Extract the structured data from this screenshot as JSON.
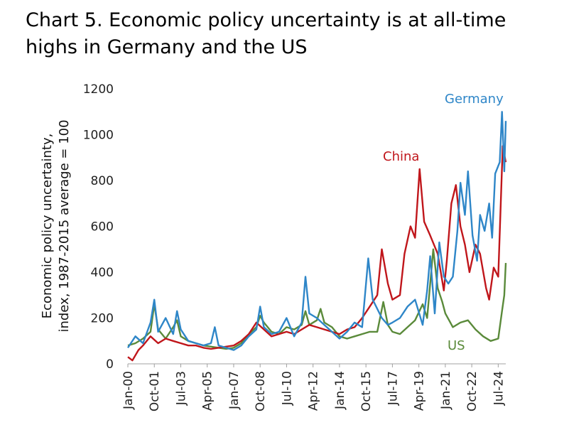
{
  "title_line1": "Chart 5. Economic policy uncertainty is at all-time",
  "title_line2": "highs in Germany and the US",
  "chart_data": {
    "type": "line",
    "ylabel_line1": "Economic policy uncertainty,",
    "ylabel_line2": "index, 1987-2015 average = 100",
    "ylim": [
      0,
      1200
    ],
    "yticks": [
      0,
      200,
      400,
      600,
      800,
      1000,
      1200
    ],
    "xlim": [
      2000.0,
      2025.0
    ],
    "xticks": [
      {
        "label": "Jan-00",
        "x": 2000.0
      },
      {
        "label": "Oct-01",
        "x": 2001.75
      },
      {
        "label": "Jul-03",
        "x": 2003.5
      },
      {
        "label": "Apr-05",
        "x": 2005.25
      },
      {
        "label": "Jan-07",
        "x": 2007.0
      },
      {
        "label": "Oct-08",
        "x": 2008.75
      },
      {
        "label": "Jul-10",
        "x": 2010.5
      },
      {
        "label": "Apr-12",
        "x": 2012.25
      },
      {
        "label": "Jan-14",
        "x": 2014.0
      },
      {
        "label": "Oct-15",
        "x": 2015.75
      },
      {
        "label": "Jul-17",
        "x": 2017.5
      },
      {
        "label": "Apr-19",
        "x": 2019.25
      },
      {
        "label": "Jan-21",
        "x": 2021.0
      },
      {
        "label": "Oct-22",
        "x": 2022.75
      },
      {
        "label": "Jul-24",
        "x": 2024.5
      }
    ],
    "grid": false,
    "series": [
      {
        "name": "US",
        "color": "#5a8a3a",
        "points": [
          [
            2000.0,
            80
          ],
          [
            2000.5,
            90
          ],
          [
            2001.0,
            110
          ],
          [
            2001.5,
            140
          ],
          [
            2001.75,
            260
          ],
          [
            2002.0,
            150
          ],
          [
            2002.5,
            110
          ],
          [
            2003.0,
            160
          ],
          [
            2003.25,
            190
          ],
          [
            2003.5,
            120
          ],
          [
            2004.0,
            100
          ],
          [
            2004.5,
            90
          ],
          [
            2005.0,
            80
          ],
          [
            2005.5,
            75
          ],
          [
            2006.0,
            70
          ],
          [
            2006.5,
            65
          ],
          [
            2007.0,
            70
          ],
          [
            2007.5,
            90
          ],
          [
            2008.0,
            130
          ],
          [
            2008.5,
            160
          ],
          [
            2008.75,
            210
          ],
          [
            2009.0,
            180
          ],
          [
            2009.5,
            140
          ],
          [
            2010.0,
            130
          ],
          [
            2010.5,
            160
          ],
          [
            2011.0,
            150
          ],
          [
            2011.5,
            170
          ],
          [
            2011.75,
            230
          ],
          [
            2012.0,
            170
          ],
          [
            2012.5,
            190
          ],
          [
            2012.75,
            240
          ],
          [
            2013.0,
            180
          ],
          [
            2013.5,
            160
          ],
          [
            2014.0,
            120
          ],
          [
            2014.5,
            110
          ],
          [
            2015.0,
            120
          ],
          [
            2015.5,
            130
          ],
          [
            2016.0,
            140
          ],
          [
            2016.5,
            140
          ],
          [
            2016.9,
            270
          ],
          [
            2017.2,
            170
          ],
          [
            2017.5,
            140
          ],
          [
            2018.0,
            130
          ],
          [
            2018.5,
            160
          ],
          [
            2019.0,
            190
          ],
          [
            2019.5,
            260
          ],
          [
            2019.8,
            200
          ],
          [
            2020.2,
            500
          ],
          [
            2020.5,
            330
          ],
          [
            2020.8,
            270
          ],
          [
            2021.0,
            220
          ],
          [
            2021.5,
            160
          ],
          [
            2022.0,
            180
          ],
          [
            2022.5,
            190
          ],
          [
            2023.0,
            150
          ],
          [
            2023.5,
            120
          ],
          [
            2024.0,
            100
          ],
          [
            2024.5,
            110
          ],
          [
            2024.75,
            230
          ],
          [
            2024.9,
            300
          ],
          [
            2025.0,
            440
          ]
        ]
      },
      {
        "name": "China",
        "color": "#c0161b",
        "points": [
          [
            2000.0,
            30
          ],
          [
            2000.3,
            15
          ],
          [
            2000.7,
            60
          ],
          [
            2001.0,
            80
          ],
          [
            2001.5,
            120
          ],
          [
            2002.0,
            90
          ],
          [
            2002.5,
            110
          ],
          [
            2003.0,
            100
          ],
          [
            2003.5,
            90
          ],
          [
            2004.0,
            80
          ],
          [
            2004.5,
            80
          ],
          [
            2005.0,
            70
          ],
          [
            2005.5,
            65
          ],
          [
            2006.0,
            70
          ],
          [
            2006.5,
            75
          ],
          [
            2007.0,
            80
          ],
          [
            2007.5,
            100
          ],
          [
            2008.0,
            130
          ],
          [
            2008.5,
            180
          ],
          [
            2009.0,
            150
          ],
          [
            2009.5,
            120
          ],
          [
            2010.0,
            130
          ],
          [
            2010.5,
            140
          ],
          [
            2011.0,
            130
          ],
          [
            2011.5,
            150
          ],
          [
            2012.0,
            170
          ],
          [
            2012.5,
            160
          ],
          [
            2013.0,
            150
          ],
          [
            2013.5,
            140
          ],
          [
            2014.0,
            130
          ],
          [
            2014.5,
            150
          ],
          [
            2015.0,
            160
          ],
          [
            2015.5,
            200
          ],
          [
            2016.0,
            250
          ],
          [
            2016.5,
            300
          ],
          [
            2016.8,
            500
          ],
          [
            2017.2,
            350
          ],
          [
            2017.5,
            280
          ],
          [
            2018.0,
            300
          ],
          [
            2018.3,
            480
          ],
          [
            2018.7,
            600
          ],
          [
            2019.0,
            550
          ],
          [
            2019.3,
            850
          ],
          [
            2019.6,
            620
          ],
          [
            2020.0,
            560
          ],
          [
            2020.5,
            480
          ],
          [
            2020.9,
            320
          ],
          [
            2021.1,
            450
          ],
          [
            2021.4,
            700
          ],
          [
            2021.7,
            780
          ],
          [
            2022.0,
            600
          ],
          [
            2022.3,
            520
          ],
          [
            2022.6,
            400
          ],
          [
            2023.0,
            520
          ],
          [
            2023.3,
            480
          ],
          [
            2023.7,
            330
          ],
          [
            2023.9,
            280
          ],
          [
            2024.2,
            420
          ],
          [
            2024.5,
            380
          ],
          [
            2024.8,
            950
          ],
          [
            2025.0,
            880
          ]
        ]
      },
      {
        "name": "Germany",
        "color": "#2e86c8",
        "points": [
          [
            2000.0,
            70
          ],
          [
            2000.5,
            120
          ],
          [
            2001.0,
            90
          ],
          [
            2001.5,
            180
          ],
          [
            2001.75,
            280
          ],
          [
            2002.0,
            140
          ],
          [
            2002.5,
            200
          ],
          [
            2003.0,
            130
          ],
          [
            2003.25,
            230
          ],
          [
            2003.5,
            150
          ],
          [
            2004.0,
            100
          ],
          [
            2004.5,
            90
          ],
          [
            2005.0,
            80
          ],
          [
            2005.5,
            90
          ],
          [
            2005.75,
            160
          ],
          [
            2006.0,
            80
          ],
          [
            2006.5,
            70
          ],
          [
            2007.0,
            60
          ],
          [
            2007.5,
            80
          ],
          [
            2008.0,
            120
          ],
          [
            2008.5,
            150
          ],
          [
            2008.75,
            250
          ],
          [
            2009.0,
            160
          ],
          [
            2009.5,
            130
          ],
          [
            2010.0,
            140
          ],
          [
            2010.5,
            200
          ],
          [
            2011.0,
            120
          ],
          [
            2011.5,
            180
          ],
          [
            2011.75,
            380
          ],
          [
            2012.0,
            220
          ],
          [
            2012.5,
            200
          ],
          [
            2013.0,
            170
          ],
          [
            2013.5,
            140
          ],
          [
            2014.0,
            110
          ],
          [
            2014.5,
            140
          ],
          [
            2015.0,
            180
          ],
          [
            2015.5,
            160
          ],
          [
            2015.9,
            460
          ],
          [
            2016.2,
            280
          ],
          [
            2016.5,
            240
          ],
          [
            2016.8,
            200
          ],
          [
            2017.2,
            170
          ],
          [
            2017.5,
            180
          ],
          [
            2018.0,
            200
          ],
          [
            2018.5,
            250
          ],
          [
            2019.0,
            280
          ],
          [
            2019.5,
            170
          ],
          [
            2019.8,
            320
          ],
          [
            2020.0,
            470
          ],
          [
            2020.3,
            220
          ],
          [
            2020.6,
            530
          ],
          [
            2020.9,
            380
          ],
          [
            2021.2,
            350
          ],
          [
            2021.5,
            380
          ],
          [
            2021.8,
            580
          ],
          [
            2022.0,
            790
          ],
          [
            2022.3,
            650
          ],
          [
            2022.5,
            840
          ],
          [
            2022.8,
            560
          ],
          [
            2023.1,
            450
          ],
          [
            2023.3,
            650
          ],
          [
            2023.6,
            580
          ],
          [
            2023.9,
            700
          ],
          [
            2024.1,
            550
          ],
          [
            2024.3,
            830
          ],
          [
            2024.6,
            880
          ],
          [
            2024.75,
            1100
          ],
          [
            2024.9,
            840
          ],
          [
            2025.0,
            1060
          ]
        ]
      }
    ],
    "series_labels": [
      {
        "text": "Germany",
        "series": "Germany"
      },
      {
        "text": "China",
        "series": "China"
      },
      {
        "text": "US",
        "series": "US"
      }
    ]
  }
}
